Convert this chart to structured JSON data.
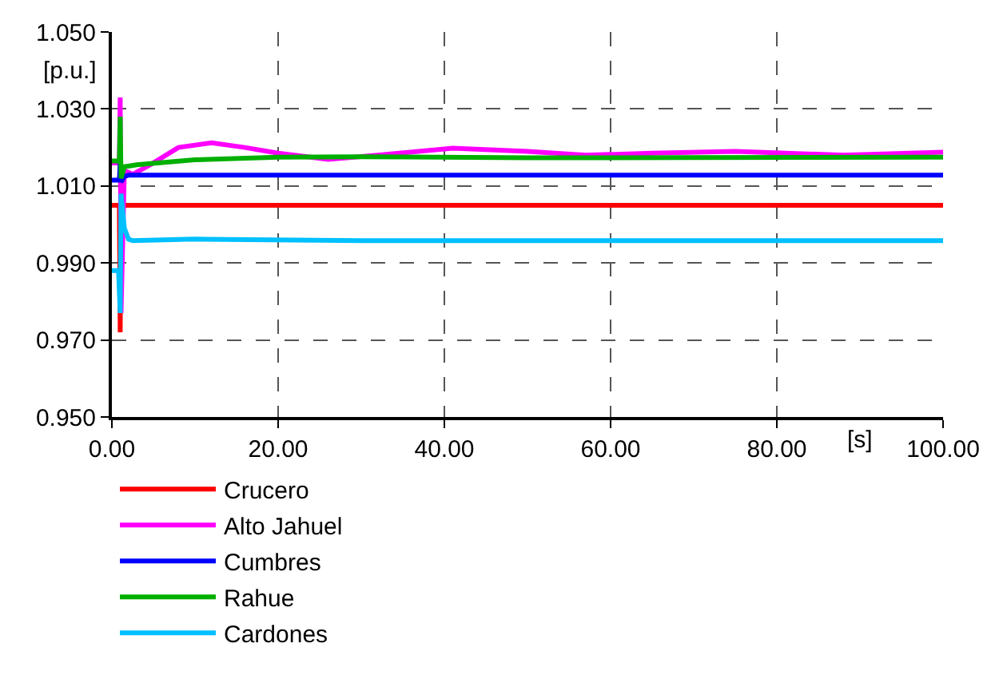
{
  "chart_data": {
    "type": "line",
    "xlabel": "[s]",
    "ylabel": "[p.u.]",
    "xlim": [
      0,
      100
    ],
    "ylim": [
      0.95,
      1.05
    ],
    "xticks": [
      {
        "value": 0,
        "label": "0.00"
      },
      {
        "value": 20,
        "label": "20.00"
      },
      {
        "value": 40,
        "label": "40.00"
      },
      {
        "value": 60,
        "label": "60.00"
      },
      {
        "value": 80,
        "label": "80.00"
      },
      {
        "value": 100,
        "label": "100.00"
      }
    ],
    "yticks": [
      {
        "value": 0.95,
        "label": "0.950"
      },
      {
        "value": 0.97,
        "label": "0.970"
      },
      {
        "value": 0.99,
        "label": "0.990"
      },
      {
        "value": 1.01,
        "label": "1.010"
      },
      {
        "value": 1.03,
        "label": "1.030"
      },
      {
        "value": 1.05,
        "label": "1.050"
      }
    ],
    "grid": true,
    "legend": "bottom",
    "line_style": "solid",
    "series": [
      {
        "name": "Crucero",
        "color": "#ff0000",
        "x": [
          0,
          0.9,
          1.0,
          1.1,
          1.3,
          2,
          100
        ],
        "values": [
          1.005,
          1.005,
          0.972,
          1.004,
          1.005,
          1.005,
          1.005
        ]
      },
      {
        "name": "Alto Jahuel",
        "color": "#ff00ff",
        "x": [
          0,
          0.9,
          1.0,
          1.1,
          1.5,
          2.5,
          5,
          8,
          12,
          16,
          20,
          26,
          32,
          41,
          50,
          57,
          65,
          75,
          88,
          100
        ],
        "values": [
          1.016,
          1.016,
          1.033,
          0.977,
          1.014,
          1.013,
          1.016,
          1.02,
          1.0212,
          1.02,
          1.0185,
          1.0169,
          1.018,
          1.0198,
          1.019,
          1.018,
          1.0185,
          1.019,
          1.018,
          1.0188
        ]
      },
      {
        "name": "Cumbres",
        "color": "#0000ff",
        "x": [
          0,
          0.9,
          1.0,
          1.1,
          1.5,
          2,
          100
        ],
        "values": [
          1.0115,
          1.0115,
          1.016,
          1.011,
          1.0125,
          1.0128,
          1.0128
        ]
      },
      {
        "name": "Rahue",
        "color": "#00b000",
        "x": [
          0,
          0.9,
          1.0,
          1.1,
          1.5,
          3,
          10,
          20,
          30,
          50,
          70,
          100
        ],
        "values": [
          1.0165,
          1.0165,
          1.028,
          1.012,
          1.015,
          1.0155,
          1.0168,
          1.0175,
          1.0176,
          1.0173,
          1.0174,
          1.0175
        ]
      },
      {
        "name": "Cardones",
        "color": "#00c0ff",
        "x": [
          0,
          0.8,
          1.0,
          1.1,
          1.5,
          2,
          2.5,
          10,
          30,
          60,
          100
        ],
        "values": [
          0.988,
          0.988,
          0.977,
          1.008,
          0.999,
          0.9962,
          0.9958,
          0.9962,
          0.9958,
          0.9958,
          0.9958
        ]
      }
    ]
  }
}
